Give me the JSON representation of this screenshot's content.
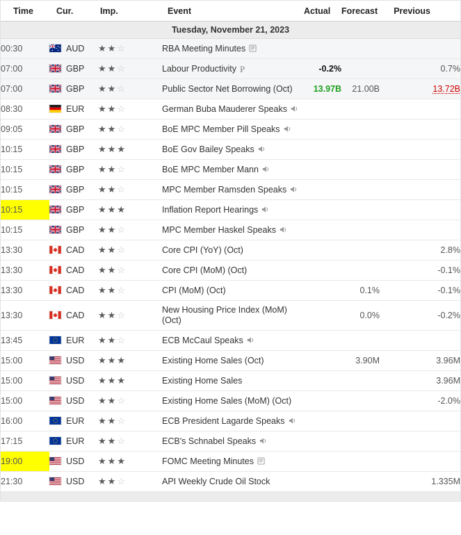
{
  "colors": {
    "highlight_yellow": "#ffff00",
    "actual_better_green": "#1d9e1d",
    "revised_red": "#cc0000",
    "star_filled": "#5c5c5c",
    "star_empty": "#c4c4c4"
  },
  "table": {
    "columns": [
      "Time",
      "Cur.",
      "Imp.",
      "Event",
      "Actual",
      "Forecast",
      "Previous"
    ],
    "date_header": "Tuesday, November 21, 2023",
    "importance_max": 3,
    "rows": [
      {
        "time": "00:30",
        "currency": "AUD",
        "flag": "au-flag-icon",
        "importance": 2,
        "event": "RBA Meeting Minutes",
        "event_icon": "report-icon",
        "shaded": true
      },
      {
        "time": "07:00",
        "currency": "GBP",
        "flag": "gb-flag-icon",
        "importance": 2,
        "event": "Labour Productivity",
        "event_icon": "p-icon",
        "actual": "-0.2%",
        "actual_style": "bold",
        "previous": "0.7%",
        "shaded": true
      },
      {
        "time": "07:00",
        "currency": "GBP",
        "flag": "gb-flag-icon",
        "importance": 2,
        "event": "Public Sector Net Borrowing (Oct)",
        "actual": "13.97B",
        "actual_style": "green",
        "forecast": "21.00B",
        "previous": "13.72B",
        "previous_style": "red",
        "shaded": true
      },
      {
        "time": "08:30",
        "currency": "EUR",
        "flag": "de-flag-icon",
        "importance": 2,
        "event": "German Buba Mauderer Speaks",
        "event_icon": "speaker-icon"
      },
      {
        "time": "09:05",
        "currency": "GBP",
        "flag": "gb-flag-icon",
        "importance": 2,
        "event": "BoE MPC Member Pill Speaks",
        "event_icon": "speaker-icon"
      },
      {
        "time": "10:15",
        "currency": "GBP",
        "flag": "gb-flag-icon",
        "importance": 3,
        "event": "BoE Gov Bailey Speaks",
        "event_icon": "speaker-icon"
      },
      {
        "time": "10:15",
        "currency": "GBP",
        "flag": "gb-flag-icon",
        "importance": 2,
        "event": "BoE MPC Member Mann",
        "event_icon": "speaker-icon"
      },
      {
        "time": "10:15",
        "currency": "GBP",
        "flag": "gb-flag-icon",
        "importance": 2,
        "event": "MPC Member Ramsden Speaks",
        "event_icon": "speaker-icon"
      },
      {
        "time": "10:15",
        "time_highlight": true,
        "currency": "GBP",
        "flag": "gb-flag-icon",
        "importance": 3,
        "event": "Inflation Report Hearings",
        "event_icon": "speaker-icon"
      },
      {
        "time": "10:15",
        "currency": "GBP",
        "flag": "gb-flag-icon",
        "importance": 2,
        "event": "MPC Member Haskel Speaks",
        "event_icon": "speaker-icon"
      },
      {
        "time": "13:30",
        "currency": "CAD",
        "flag": "ca-flag-icon",
        "importance": 2,
        "event": "Core CPI (YoY) (Oct)",
        "previous": "2.8%"
      },
      {
        "time": "13:30",
        "currency": "CAD",
        "flag": "ca-flag-icon",
        "importance": 2,
        "event": "Core CPI (MoM) (Oct)",
        "previous": "-0.1%"
      },
      {
        "time": "13:30",
        "currency": "CAD",
        "flag": "ca-flag-icon",
        "importance": 2,
        "event": "CPI (MoM) (Oct)",
        "forecast": "0.1%",
        "previous": "-0.1%"
      },
      {
        "time": "13:30",
        "currency": "CAD",
        "flag": "ca-flag-icon",
        "importance": 2,
        "event": "New Housing Price Index (MoM) (Oct)",
        "forecast": "0.0%",
        "previous": "-0.2%"
      },
      {
        "time": "13:45",
        "currency": "EUR",
        "flag": "eu-flag-icon",
        "importance": 2,
        "event": "ECB McCaul Speaks",
        "event_icon": "speaker-icon"
      },
      {
        "time": "15:00",
        "currency": "USD",
        "flag": "us-flag-icon",
        "importance": 3,
        "event": "Existing Home Sales (Oct)",
        "forecast": "3.90M",
        "previous": "3.96M"
      },
      {
        "time": "15:00",
        "currency": "USD",
        "flag": "us-flag-icon",
        "importance": 3,
        "event": "Existing Home Sales",
        "previous": "3.96M"
      },
      {
        "time": "15:00",
        "currency": "USD",
        "flag": "us-flag-icon",
        "importance": 2,
        "event": "Existing Home Sales (MoM) (Oct)",
        "previous": "-2.0%"
      },
      {
        "time": "16:00",
        "currency": "EUR",
        "flag": "eu-flag-icon",
        "importance": 2,
        "event": "ECB President Lagarde Speaks",
        "event_icon": "speaker-icon"
      },
      {
        "time": "17:15",
        "currency": "EUR",
        "flag": "eu-flag-icon",
        "importance": 2,
        "event": "ECB's Schnabel Speaks",
        "event_icon": "speaker-icon"
      },
      {
        "time": "19:00",
        "time_highlight": true,
        "currency": "USD",
        "flag": "us-flag-icon",
        "importance": 3,
        "event": "FOMC Meeting Minutes",
        "event_icon": "report-icon"
      },
      {
        "time": "21:30",
        "currency": "USD",
        "flag": "us-flag-icon",
        "importance": 2,
        "event": "API Weekly Crude Oil Stock",
        "previous": "1.335M"
      }
    ]
  }
}
